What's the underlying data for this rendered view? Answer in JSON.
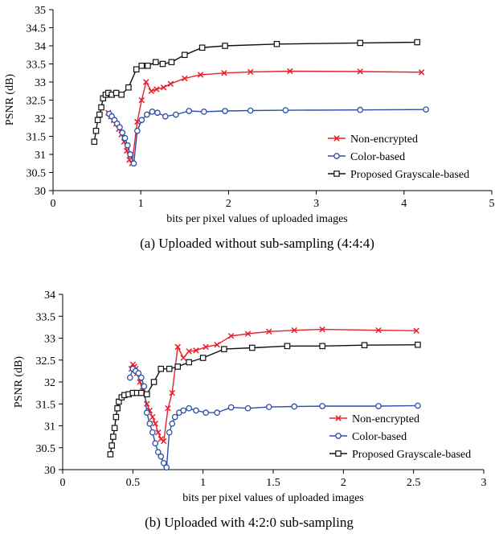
{
  "chart_data": [
    {
      "type": "line",
      "caption": "(a) Uploaded without sub-sampling (4:4:4)",
      "xlabel": "bits per pixel values of uploaded images",
      "ylabel": "PSNR (dB)",
      "xlim": [
        0,
        5
      ],
      "ylim": [
        30,
        35
      ],
      "xticks": [
        0,
        1,
        2,
        3,
        4,
        5
      ],
      "yticks": [
        30,
        30.5,
        31,
        31.5,
        32,
        32.5,
        33,
        33.5,
        34,
        34.5,
        35
      ],
      "xtick_labels": [
        "0",
        "1",
        "2",
        "3",
        "4",
        "5"
      ],
      "ytick_labels": [
        "30",
        "30.5",
        "31",
        "31.5",
        "32",
        "32.5",
        "33",
        "33.5",
        "34",
        "34.5",
        "35"
      ],
      "grid": false,
      "legend_position": "lower-right",
      "series": [
        {
          "name": "Non-encrypted",
          "color": "#e8202a",
          "marker": "x",
          "x": [
            0.63,
            0.66,
            0.69,
            0.72,
            0.75,
            0.78,
            0.81,
            0.84,
            0.87,
            0.9,
            0.96,
            1.01,
            1.06,
            1.12,
            1.18,
            1.26,
            1.34,
            1.5,
            1.68,
            1.95,
            2.25,
            2.7,
            3.5,
            4.2
          ],
          "y": [
            32.15,
            32.05,
            31.95,
            31.85,
            31.7,
            31.55,
            31.35,
            31.1,
            30.85,
            30.75,
            31.9,
            32.5,
            33.0,
            32.75,
            32.8,
            32.85,
            32.95,
            33.1,
            33.2,
            33.25,
            33.28,
            33.3,
            33.29,
            33.27
          ]
        },
        {
          "name": "Color-based",
          "color": "#2b4fa8",
          "marker": "o",
          "x": [
            0.64,
            0.67,
            0.7,
            0.73,
            0.76,
            0.79,
            0.82,
            0.85,
            0.88,
            0.92,
            0.96,
            1.01,
            1.07,
            1.13,
            1.19,
            1.28,
            1.4,
            1.55,
            1.72,
            1.96,
            2.25,
            2.65,
            3.5,
            4.25
          ],
          "y": [
            32.12,
            32.05,
            31.95,
            31.85,
            31.75,
            31.6,
            31.45,
            31.25,
            31.0,
            30.75,
            31.65,
            31.95,
            32.1,
            32.18,
            32.15,
            32.05,
            32.1,
            32.2,
            32.18,
            32.2,
            32.21,
            32.22,
            32.23,
            32.24
          ]
        },
        {
          "name": "Proposed Grayscale-based",
          "color": "#111111",
          "marker": "s",
          "x": [
            0.47,
            0.49,
            0.51,
            0.53,
            0.55,
            0.57,
            0.6,
            0.63,
            0.67,
            0.72,
            0.78,
            0.86,
            0.95,
            1.01,
            1.08,
            1.17,
            1.25,
            1.35,
            1.5,
            1.7,
            1.96,
            2.55,
            3.5,
            4.15
          ],
          "y": [
            31.35,
            31.65,
            31.95,
            32.1,
            32.3,
            32.55,
            32.65,
            32.7,
            32.65,
            32.7,
            32.65,
            32.85,
            33.35,
            33.45,
            33.45,
            33.55,
            33.5,
            33.55,
            33.75,
            33.95,
            34.0,
            34.05,
            34.08,
            34.1
          ]
        }
      ]
    },
    {
      "type": "line",
      "caption": "(b) Uploaded with 4:2:0 sub-sampling",
      "xlabel": "bits per pixel values of uploaded images",
      "ylabel": "PSNR (dB)",
      "xlim": [
        0,
        3
      ],
      "ylim": [
        30,
        34
      ],
      "xticks": [
        0,
        0.5,
        1,
        1.5,
        2,
        2.5,
        3
      ],
      "yticks": [
        30,
        30.5,
        31,
        31.5,
        32,
        32.5,
        33,
        33.5,
        34
      ],
      "xtick_labels": [
        "0",
        "0.5",
        "1",
        "1.5",
        "2",
        "2.5",
        "3"
      ],
      "ytick_labels": [
        "30",
        "30.5",
        "31",
        "31.5",
        "32",
        "32.5",
        "33",
        "33.5",
        "34"
      ],
      "grid": false,
      "legend_position": "lower-right",
      "series": [
        {
          "name": "Non-encrypted",
          "color": "#e8202a",
          "marker": "x",
          "x": [
            0.49,
            0.5,
            0.51,
            0.52,
            0.53,
            0.55,
            0.57,
            0.6,
            0.62,
            0.64,
            0.66,
            0.68,
            0.7,
            0.72,
            0.75,
            0.78,
            0.82,
            0.86,
            0.9,
            0.95,
            1.02,
            1.1,
            1.2,
            1.32,
            1.47,
            1.65,
            1.85,
            2.25,
            2.52
          ],
          "y": [
            32.3,
            32.4,
            32.35,
            32.3,
            32.2,
            32.0,
            31.8,
            31.5,
            31.35,
            31.2,
            31.05,
            30.85,
            30.7,
            30.65,
            31.4,
            31.75,
            32.8,
            32.55,
            32.7,
            32.72,
            32.8,
            32.85,
            33.05,
            33.1,
            33.15,
            33.18,
            33.2,
            33.18,
            33.17
          ]
        },
        {
          "name": "Color-based",
          "color": "#2b4fa8",
          "marker": "o",
          "x": [
            0.48,
            0.5,
            0.52,
            0.54,
            0.56,
            0.58,
            0.6,
            0.62,
            0.64,
            0.66,
            0.68,
            0.7,
            0.72,
            0.74,
            0.76,
            0.78,
            0.8,
            0.83,
            0.86,
            0.9,
            0.95,
            1.02,
            1.1,
            1.2,
            1.32,
            1.47,
            1.65,
            1.85,
            2.25,
            2.53
          ],
          "y": [
            32.1,
            32.3,
            32.25,
            32.2,
            32.1,
            31.9,
            31.3,
            31.05,
            30.85,
            30.6,
            30.4,
            30.3,
            30.15,
            30.05,
            30.85,
            31.05,
            31.2,
            31.3,
            31.35,
            31.4,
            31.35,
            31.3,
            31.3,
            31.42,
            31.4,
            31.43,
            31.44,
            31.45,
            31.45,
            31.46
          ]
        },
        {
          "name": "Proposed Grayscale-based",
          "color": "#111111",
          "marker": "s",
          "x": [
            0.34,
            0.35,
            0.36,
            0.37,
            0.38,
            0.39,
            0.4,
            0.42,
            0.44,
            0.47,
            0.5,
            0.53,
            0.56,
            0.6,
            0.65,
            0.7,
            0.76,
            0.82,
            0.9,
            1.0,
            1.15,
            1.35,
            1.6,
            1.85,
            2.15,
            2.53
          ],
          "y": [
            30.35,
            30.55,
            30.75,
            30.95,
            31.2,
            31.4,
            31.55,
            31.65,
            31.7,
            31.72,
            31.75,
            31.75,
            31.75,
            31.72,
            32.0,
            32.3,
            32.3,
            32.35,
            32.45,
            32.55,
            32.75,
            32.78,
            32.82,
            32.82,
            32.84,
            32.85
          ]
        }
      ]
    }
  ]
}
